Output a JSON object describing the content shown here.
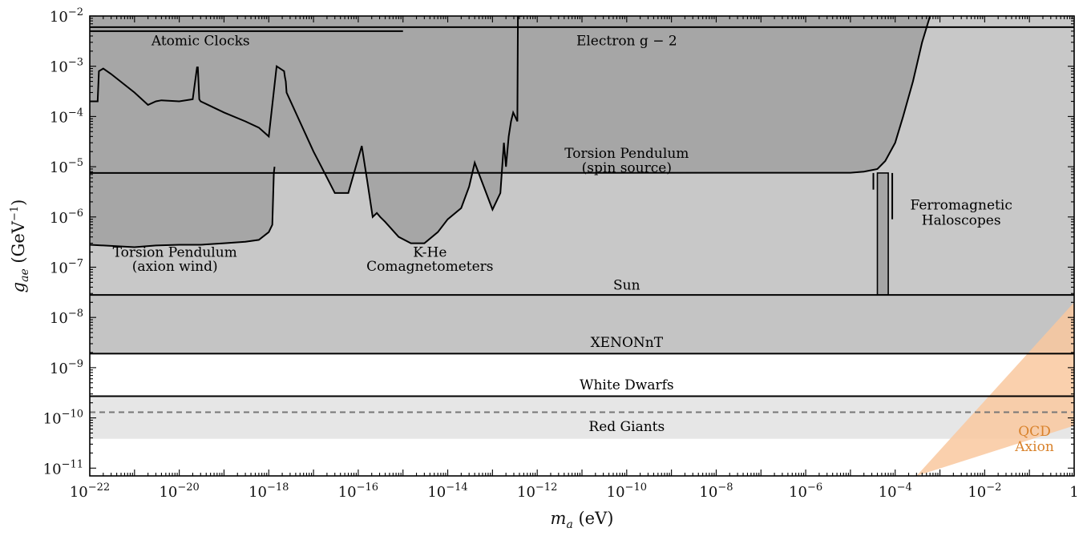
{
  "chart_data": {
    "type": "area",
    "title": "",
    "xlabel": "m_a (eV)",
    "ylabel": "g_ae (GeV^-1)",
    "xscale": "log",
    "yscale": "log",
    "xlim": [
      1e-22,
      1
    ],
    "ylim": [
      7e-12,
      0.01
    ],
    "x_tick_labels": [
      "10^-22",
      "10^-20",
      "10^-18",
      "10^-16",
      "10^-14",
      "10^-12",
      "10^-10",
      "10^-8",
      "10^-6",
      "10^-4",
      "10^-2",
      "1"
    ],
    "y_tick_labels": [
      "10^-11",
      "10^-10",
      "10^-9",
      "10^-8",
      "10^-7",
      "10^-6",
      "10^-5",
      "10^-4",
      "10^-3",
      "10^-2"
    ],
    "colors": {
      "lab_dark": "#a6a6a6",
      "astro_mid": "#c8c8c8",
      "xenon": "#c4c4c4",
      "white_dwarfs": "#e6e6e6",
      "qcd_axion": "#f9c89f",
      "qcd_text": "#d9822b",
      "line": "#000000",
      "red_giants_line": "#777777"
    },
    "bounds": [
      {
        "name": "Electron g − 2",
        "type": "horizontal",
        "g": 0.006,
        "x_range": [
          1e-22,
          1
        ]
      },
      {
        "name": "Sun",
        "type": "horizontal",
        "g": 2.8e-08,
        "x_range": [
          1e-22,
          1
        ]
      },
      {
        "name": "XENONnT",
        "type": "horizontal",
        "g": 1.9e-09,
        "x_range": [
          1e-22,
          1
        ]
      },
      {
        "name": "White Dwarfs",
        "type": "horizontal",
        "g": 2.7e-10,
        "x_range": [
          1e-22,
          1
        ]
      },
      {
        "name": "Red Giants",
        "type": "horizontal",
        "style": "dashed",
        "g": 1.3e-10,
        "x_range": [
          1e-22,
          1
        ]
      },
      {
        "name": "Atomic Clocks",
        "type": "horizontal",
        "g": 0.005,
        "x_range": [
          1e-22,
          1e-15
        ]
      }
    ],
    "series": [
      {
        "name": "Torsion Pendulum (spin source)",
        "x": [
          1e-22,
          1e-05,
          2e-05,
          4e-05,
          6e-05,
          0.0001,
          0.00015,
          0.00025,
          0.0004,
          0.0006
        ],
        "g": [
          7.5e-06,
          7.6e-06,
          8e-06,
          9e-06,
          1.3e-05,
          3e-05,
          0.0001,
          0.0005,
          0.003,
          0.01
        ]
      },
      {
        "name": "Torsion Pendulum (axion wind)",
        "x": [
          1e-22,
          1e-21,
          3e-21,
          1e-20,
          3e-20,
          1e-19,
          3e-19,
          6e-19,
          1e-18,
          1.2e-18,
          1.3e-18,
          1.35e-18
        ],
        "g": [
          2.8e-07,
          2.5e-07,
          2.7e-07,
          2.8e-07,
          2.8e-07,
          3e-07,
          3.2e-07,
          3.5e-07,
          5e-07,
          7e-07,
          7.5e-06,
          1e-05
        ]
      },
      {
        "name": "K-He Comagnetometers",
        "x": [
          1e-22,
          1e-22,
          1.5e-22,
          1.6e-22,
          2e-22,
          3e-22,
          1e-21,
          2e-21,
          3e-21,
          4e-21,
          1e-20,
          2e-20,
          2.5e-20,
          2.6e-20,
          2.8e-20,
          3e-20,
          1e-19,
          3e-19,
          6e-19,
          1e-18,
          1.5e-18,
          2.2e-18,
          2.3e-18,
          2.4e-18,
          2.5e-18,
          1e-17,
          1.5e-17,
          3e-17,
          6e-17,
          1.2e-16,
          1.6e-16,
          2.1e-16,
          2.6e-16,
          3.1e-16,
          4e-16,
          8e-16,
          1.5e-15,
          3e-15,
          6e-15,
          1e-14,
          2e-14,
          3e-14,
          4e-14,
          1e-13,
          1.5e-13,
          1.8e-13,
          2e-13,
          2.3e-13,
          2.6e-13,
          2.9e-13,
          3.2e-13,
          3.6e-13,
          3.7e-13,
          4.2e-13,
          4.5e-13,
          4.6e-13
        ],
        "g": [
          0.0002,
          0.0002,
          0.0002,
          0.0008,
          0.0009,
          0.0007,
          0.0003,
          0.00017,
          0.0002,
          0.00021,
          0.0002,
          0.00022,
          0.00095,
          0.00095,
          0.00022,
          0.0002,
          0.00012,
          8e-05,
          6e-05,
          4e-05,
          0.001,
          0.0008,
          0.0006,
          0.0005,
          0.0003,
          2e-05,
          1e-05,
          3e-06,
          3e-06,
          2.6e-05,
          5e-06,
          1e-06,
          1.2e-06,
          1e-06,
          8e-07,
          4e-07,
          3e-07,
          3e-07,
          5e-07,
          9e-07,
          1.5e-06,
          4e-06,
          1.2e-05,
          1.4e-06,
          3e-06,
          3e-05,
          1e-05,
          4e-05,
          8e-05,
          0.00012,
          0.0001,
          8e-05,
          0.01,
          0.01,
          0.01,
          0.01
        ]
      },
      {
        "name": "Ferromagnetic Haloscopes",
        "type": "narrow-band",
        "x_range": [
          4e-05,
          7e-05
        ],
        "g_range": [
          2.8e-08,
          7.5e-06
        ]
      },
      {
        "name": "QCD Axion",
        "type": "band",
        "x_lower_edge": [
          0.0003,
          1
        ],
        "g_lower_edge": [
          7e-12,
          7e-11
        ],
        "x_upper_edge": [
          0.0003,
          1
        ],
        "g_upper_edge": [
          7e-12,
          2e-08
        ]
      }
    ],
    "annotations": [
      {
        "id": "atomic_clocks",
        "text": "Atomic Clocks"
      },
      {
        "id": "electron_g2",
        "text": "Electron g − 2"
      },
      {
        "id": "torsion_spin_1",
        "text": "Torsion Pendulum"
      },
      {
        "id": "torsion_spin_2",
        "text": "(spin source)"
      },
      {
        "id": "ferro_1",
        "text": "Ferromagnetic"
      },
      {
        "id": "ferro_2",
        "text": "Haloscopes"
      },
      {
        "id": "torsion_wind_1",
        "text": "Torsion Pendulum"
      },
      {
        "id": "torsion_wind_2",
        "text": "(axion wind)"
      },
      {
        "id": "khe_1",
        "text": "K-He"
      },
      {
        "id": "khe_2",
        "text": "Comagnetometers"
      },
      {
        "id": "sun",
        "text": "Sun"
      },
      {
        "id": "xenon",
        "text": "XENONnT"
      },
      {
        "id": "wd",
        "text": "White Dwarfs"
      },
      {
        "id": "rg",
        "text": "Red Giants"
      },
      {
        "id": "qcd_1",
        "text": "QCD"
      },
      {
        "id": "qcd_2",
        "text": "Axion"
      }
    ],
    "grid": false,
    "legend": "none"
  }
}
